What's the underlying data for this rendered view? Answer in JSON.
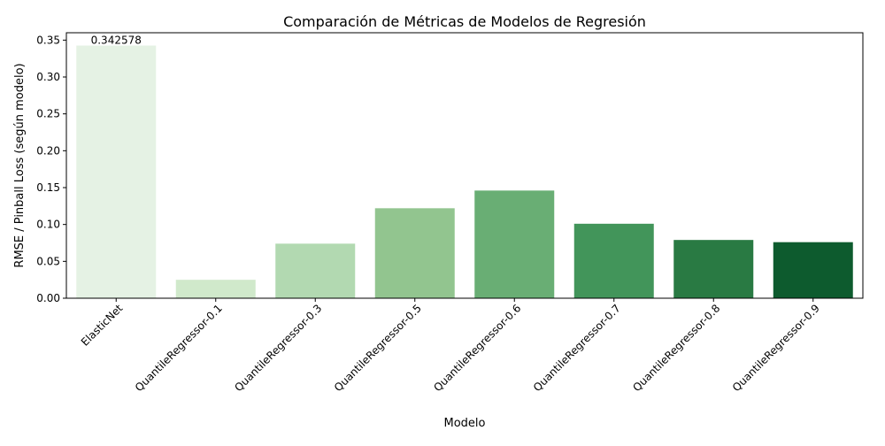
{
  "chart_data": {
    "type": "bar",
    "title": "Comparación de Métricas de Modelos de Regresión",
    "xlabel": "Modelo",
    "ylabel": "RMSE / Pinball Loss (según modelo)",
    "categories": [
      "ElasticNet",
      "QuantileRegressor-0.1",
      "QuantileRegressor-0.3",
      "QuantileRegressor-0.5",
      "QuantileRegressor-0.6",
      "QuantileRegressor-0.7",
      "QuantileRegressor-0.8",
      "QuantileRegressor-0.9"
    ],
    "values": [
      0.342578,
      0.025,
      0.074,
      0.122,
      0.146,
      0.101,
      0.079,
      0.076
    ],
    "colors": [
      "#e5f2e4",
      "#d0e9cb",
      "#b2d9b1",
      "#92c58f",
      "#69ae74",
      "#42955a",
      "#297a43",
      "#0d5b2e"
    ],
    "data_labels": [
      "0.342578"
    ],
    "ylim": [
      0,
      0.36
    ],
    "yticks": [
      0.0,
      0.05,
      0.1,
      0.15,
      0.2,
      0.25,
      0.3,
      0.35
    ],
    "ytick_labels": [
      "0.00",
      "0.05",
      "0.10",
      "0.15",
      "0.20",
      "0.25",
      "0.30",
      "0.35"
    ],
    "grid": false,
    "legend": "none"
  }
}
